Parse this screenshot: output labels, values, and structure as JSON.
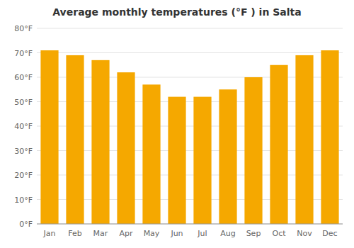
{
  "chart_data": {
    "type": "bar",
    "title": "Average monthly temperatures (°F ) in Salta",
    "categories": [
      "Jan",
      "Feb",
      "Mar",
      "Apr",
      "May",
      "Jun",
      "Jul",
      "Aug",
      "Sep",
      "Oct",
      "Nov",
      "Dec"
    ],
    "values": [
      71,
      69,
      67,
      62,
      57,
      52,
      52,
      55,
      60,
      65,
      69,
      71
    ],
    "color": "#F5A800",
    "ylim": [
      0,
      80
    ],
    "yticks": [
      {
        "value": 0,
        "label": "0°F"
      },
      {
        "value": 10,
        "label": "10°F"
      },
      {
        "value": 20,
        "label": "20°F"
      },
      {
        "value": 30,
        "label": "30°F"
      },
      {
        "value": 40,
        "label": "40°F"
      },
      {
        "value": 50,
        "label": "50°F"
      },
      {
        "value": 60,
        "label": "60°F"
      },
      {
        "value": 70,
        "label": "70°F"
      },
      {
        "value": 80,
        "label": "80°F"
      }
    ],
    "grid": true
  }
}
